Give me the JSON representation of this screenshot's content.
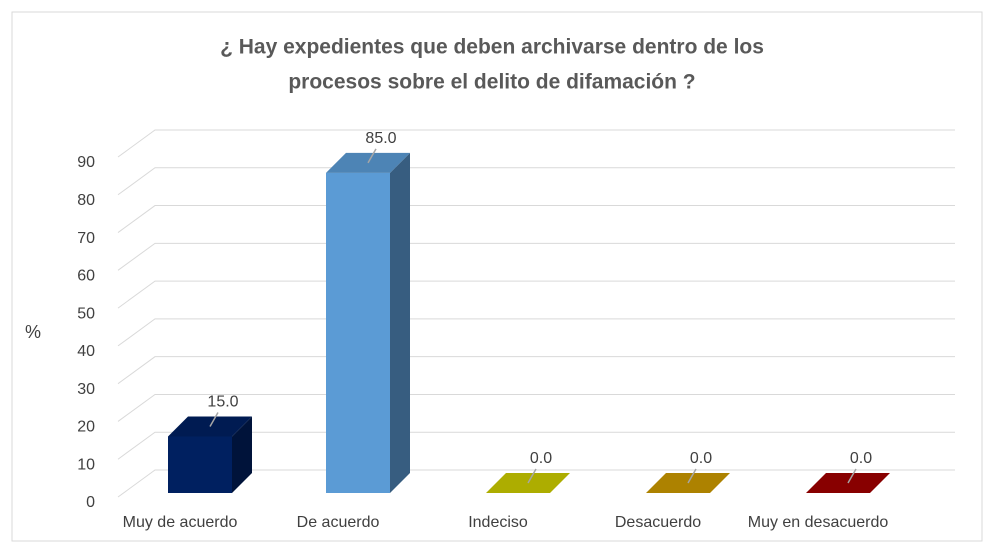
{
  "chart_data": {
    "type": "bar3d",
    "title": [
      "¿ Hay expedientes  que deben archivarse  dentro de los",
      "procesos  sobre  el delito de difamación ?"
    ],
    "y_label": "%",
    "categories": [
      "Muy de acuerdo",
      "De acuerdo",
      "Indeciso",
      "Desacuerdo",
      "Muy en desacuerdo"
    ],
    "values": [
      15,
      85,
      0,
      0,
      0
    ],
    "value_labels": [
      "15.0",
      "85.0",
      "0.0",
      "0.0",
      "0.0"
    ],
    "colors": [
      "#002060",
      "#5b9bd5",
      "#cccc00",
      "#cc9900",
      "#a00000"
    ],
    "ylim": [
      0,
      90
    ],
    "yticks": [
      0,
      10,
      20,
      30,
      40,
      50,
      60,
      70,
      80,
      90
    ],
    "grid": true
  }
}
